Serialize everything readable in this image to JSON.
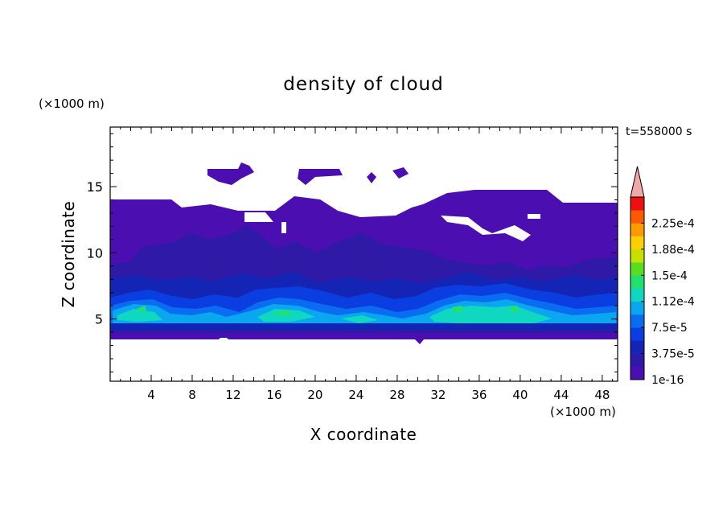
{
  "chart_data": {
    "type": "heatmap",
    "title": "density of cloud",
    "xlabel": "X coordinate",
    "ylabel": "Z coordinate",
    "x_unit": "(×1000 m)",
    "y_unit": "(×1000 m)",
    "time_label": "t=558000 s",
    "xlim": [
      0,
      49.5
    ],
    "ylim": [
      0.3,
      19.5
    ],
    "x_ticks": [
      4,
      8,
      12,
      16,
      20,
      24,
      28,
      32,
      36,
      40,
      44,
      48
    ],
    "y_ticks": [
      5,
      10,
      15
    ],
    "colorbar": {
      "levels": [
        1e-16,
        1.875e-05,
        3.75e-05,
        5.625e-05,
        7.5e-05,
        9.375e-05,
        0.0001125,
        0.00013125,
        0.00015,
        0.00016875,
        0.0001875,
        0.00020625,
        0.000225,
        0.00024375
      ],
      "labels": [
        "1e-16",
        "3.75e-5",
        "7.5e-5",
        "1.12e-4",
        "1.5e-4",
        "1.88e-4",
        "2.25e-4"
      ],
      "colors": [
        "#4b0eb0",
        "#2f1aa8",
        "#1424b5",
        "#0a3ee0",
        "#0a6cf0",
        "#0aa6f0",
        "#10d8c0",
        "#22e070",
        "#58dd20",
        "#c8e000",
        "#ffd000",
        "#ff9a00",
        "#ff5a00",
        "#ee1010"
      ],
      "overflow_color": "#f2a8a8"
    },
    "regions": {
      "top_cloud_base_km": 3.6,
      "main_layer_top_km": 14.1,
      "dense_band_km": [
        4.5,
        6.5
      ],
      "dense_cores_x_km": [
        4,
        17,
        34,
        39
      ],
      "max_value": 0.00015
    }
  }
}
